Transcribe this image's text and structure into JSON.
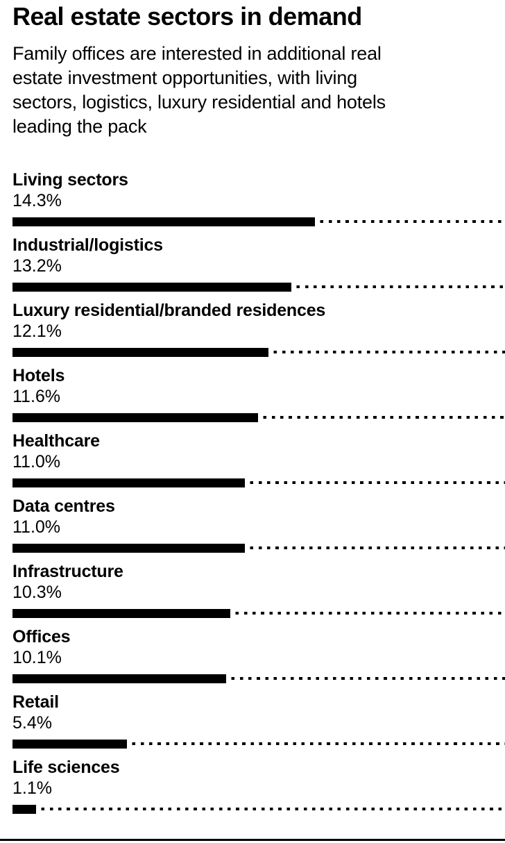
{
  "header": {
    "title": "Real estate sectors in demand",
    "subtitle_lines": [
      "Family offices are interested in additional real",
      "estate investment opportunities, with living",
      "sectors, logistics, luxury residential and hotels",
      "leading the pack"
    ]
  },
  "colors": {
    "background": "#ffffff",
    "text": "#000000",
    "bar": "#000000",
    "rule": "#000000"
  },
  "chart_data": {
    "type": "bar",
    "orientation": "horizontal",
    "title": "Real estate sectors in demand",
    "subtitle": "Family offices are interested in additional real estate investment opportunities, with living sectors, logistics, luxury residential and hotels leading the pack",
    "categories": [
      "Living sectors",
      "Industrial/logistics",
      "Luxury residential/branded residences",
      "Hotels",
      "Healthcare",
      "Data centres",
      "Infrastructure",
      "Offices",
      "Retail",
      "Life sciences"
    ],
    "values": [
      14.3,
      13.2,
      12.1,
      11.6,
      11.0,
      11.0,
      10.3,
      10.1,
      5.4,
      1.1
    ],
    "value_suffix": "%",
    "value_decimals": 1,
    "axis_max": 23.3,
    "grid": false,
    "legend": false,
    "bar_fill": "#000000",
    "trailing_dotted_leader": true
  }
}
